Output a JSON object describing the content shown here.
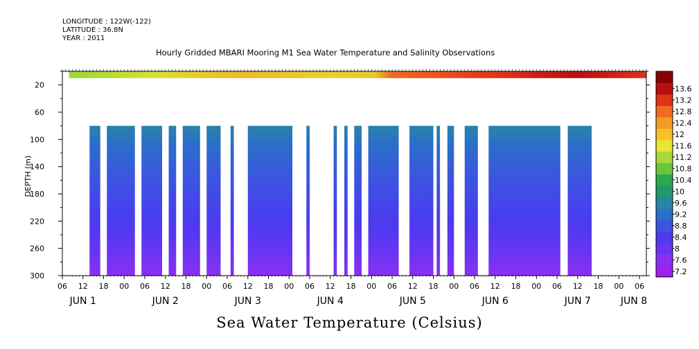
{
  "header": {
    "longitude": "LONGITUDE : 122W(-122)",
    "latitude": "LATITUDE : 36.8N",
    "year": "YEAR : 2011"
  },
  "chart_data": {
    "type": "heatmap",
    "title": "Hourly Gridded MBARI Mooring M1 Sea Water Temperature and Salinity Observations",
    "xlabel": "Sea Water Temperature (Celsius)",
    "ylabel": "DEPTH (m)",
    "y_range": [
      0,
      300
    ],
    "y_inverted": true,
    "y_ticks": [
      20,
      60,
      100,
      140,
      180,
      220,
      260,
      300
    ],
    "x_range_hours": [
      "JUN 1 06:00",
      "JUN 8 08:00"
    ],
    "hour_ticks": [
      "06",
      "12",
      "18",
      "00",
      "06",
      "12",
      "18",
      "00",
      "06",
      "12",
      "18",
      "00",
      "06",
      "12",
      "18",
      "00",
      "06",
      "12",
      "18",
      "00",
      "06",
      "12",
      "18",
      "00",
      "06",
      "12",
      "18",
      "00",
      "06"
    ],
    "day_labels": [
      {
        "text": "JUN 1",
        "day": 1
      },
      {
        "text": "JUN 2",
        "day": 2
      },
      {
        "text": "JUN 3",
        "day": 3
      },
      {
        "text": "JUN 4",
        "day": 4
      },
      {
        "text": "JUN 5",
        "day": 5
      },
      {
        "text": "JUN 6",
        "day": 6
      },
      {
        "text": "JUN 7",
        "day": 7
      },
      {
        "text": "JUN 8",
        "day": 8
      }
    ],
    "colorbar_values": [
      "7.2",
      "7.6",
      "8",
      "8.4",
      "8.8",
      "9.2",
      "9.6",
      "10",
      "10.4",
      "10.8",
      "11.2",
      "11.6",
      "12",
      "12.4",
      "12.8",
      "13.2",
      "13.6"
    ],
    "colorbar_colors": [
      "#a020f0",
      "#8a2ff2",
      "#6a35f2",
      "#4b3af0",
      "#3b55e0",
      "#2a6fc8",
      "#2a84a8",
      "#1f9a70",
      "#2aa84c",
      "#6cc43c",
      "#a8d83a",
      "#e6e634",
      "#f5c22a",
      "#f59a26",
      "#f06a20",
      "#e03218",
      "#b81010",
      "#8b0000"
    ],
    "surface_layer": {
      "depth_top": 0,
      "depth_bottom": 10,
      "start_day": 1.33,
      "end_day": 8.33,
      "values_low_to_high": "11.2 to 13.6 (warmer after JUN 4 18:00)"
    },
    "deep_layer": {
      "depth_top": 80,
      "depth_bottom": 300,
      "value_range": [
        7.2,
        9.2
      ]
    },
    "data_blocks": [
      {
        "start": 1.58,
        "end": 1.71
      },
      {
        "start": 1.79,
        "end": 2.13
      },
      {
        "start": 2.21,
        "end": 2.46
      },
      {
        "start": 2.54,
        "end": 2.63
      },
      {
        "start": 2.71,
        "end": 2.92
      },
      {
        "start": 3.0,
        "end": 3.17
      },
      {
        "start": 3.29,
        "end": 3.33
      },
      {
        "start": 3.5,
        "end": 4.04
      },
      {
        "start": 4.21,
        "end": 4.25
      },
      {
        "start": 4.54,
        "end": 4.58
      },
      {
        "start": 4.67,
        "end": 4.71
      },
      {
        "start": 4.79,
        "end": 4.88
      },
      {
        "start": 4.96,
        "end": 5.33
      },
      {
        "start": 5.46,
        "end": 5.75
      },
      {
        "start": 5.79,
        "end": 5.83
      },
      {
        "start": 5.92,
        "end": 6.0
      },
      {
        "start": 6.13,
        "end": 6.29
      },
      {
        "start": 6.42,
        "end": 7.29
      },
      {
        "start": 7.38,
        "end": 7.67
      }
    ]
  }
}
